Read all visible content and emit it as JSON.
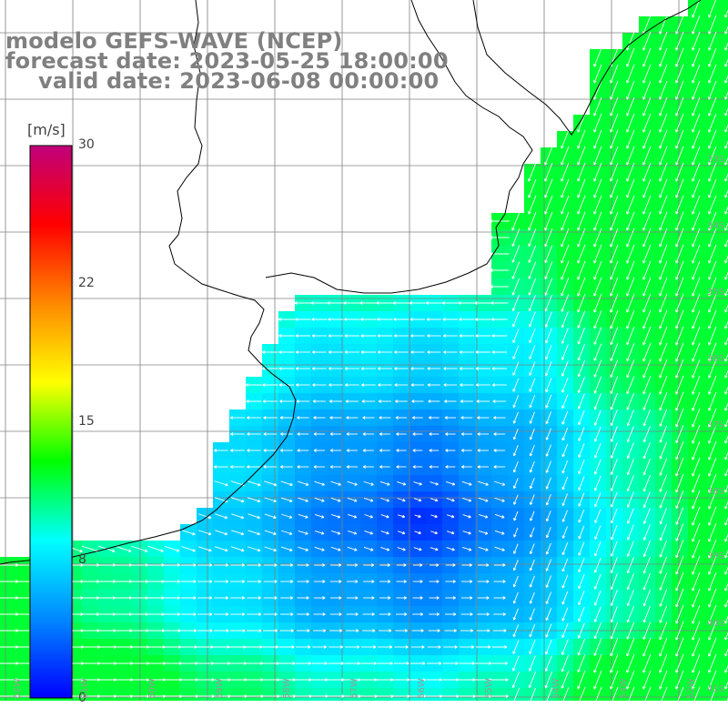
{
  "title": {
    "line1": "modelo GEFS-WAVE (NCEP)",
    "line2": "forecast date: 2023-05-25 18:00:00",
    "line3": "valid date: 2023-06-08 00:00:00"
  },
  "colorbar": {
    "units": "[m/s]",
    "ticks": [
      "30",
      "22",
      "15",
      "8",
      "0"
    ],
    "tick_values": [
      30,
      22,
      15,
      8,
      0
    ],
    "range": [
      0,
      30
    ],
    "colors": [
      "#0000ff",
      "#0088ff",
      "#00ffff",
      "#00ff00",
      "#ffff00",
      "#ff8800",
      "#ff0000",
      "#c0007a"
    ]
  },
  "map": {
    "land_color": "#ffffff",
    "coast_color": "#000000",
    "grid_color": "#808080",
    "lat_labels": [
      "33S",
      "34S",
      "35S",
      "36S",
      "37S",
      "38S",
      "39S",
      "40S",
      "41S"
    ],
    "lon_labels": [
      "62W",
      "61W",
      "60W",
      "59W",
      "58W",
      "57W",
      "56W",
      "55W",
      "54W",
      "53W",
      "52W"
    ],
    "vector_color": "#ffffff"
  }
}
